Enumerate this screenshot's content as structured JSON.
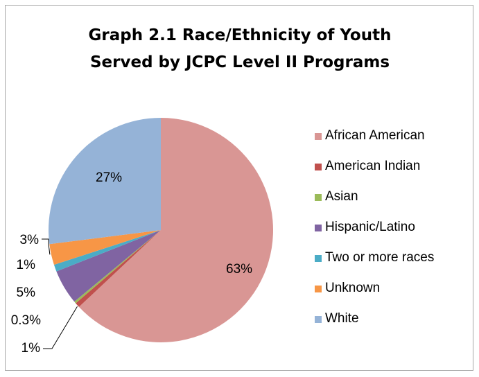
{
  "chart_data": {
    "type": "pie",
    "title_lines": [
      "Graph 2.1 Race/Ethnicity of Youth",
      "Served by JCPC Level II Programs"
    ],
    "series": [
      {
        "name": "African American",
        "value": 63,
        "label": "63%",
        "color": "#d99694"
      },
      {
        "name": "American Indian",
        "value": 0.7,
        "label": "1%",
        "color": "#c0504d"
      },
      {
        "name": "Asian",
        "value": 0.3,
        "label": "0.3%",
        "color": "#9bbb59"
      },
      {
        "name": "Hispanic/Latino",
        "value": 5,
        "label": "5%",
        "color": "#8064a2"
      },
      {
        "name": "Two or more races",
        "value": 1,
        "label": "1%",
        "color": "#4bacc6"
      },
      {
        "name": "Unknown",
        "value": 3,
        "label": "3%",
        "color": "#f79646"
      },
      {
        "name": "White",
        "value": 27,
        "label": "27%",
        "color": "#95b3d7"
      }
    ],
    "legend_position": "right"
  }
}
